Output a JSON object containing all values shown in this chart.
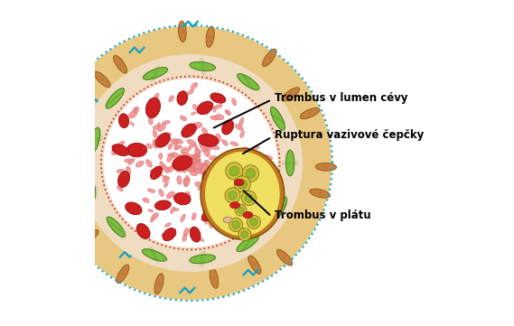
{
  "labels": {
    "lumen": "Trombus v lumen cévy",
    "ruptura": "Ruptura vazivové čepčky",
    "platu": "Trombus v plátu"
  },
  "colors": {
    "outer_bg": "#FFFFFF",
    "adventitia_fill": "#E8C880",
    "adventitia_cell": "#C88040",
    "adventitia_cell_edge": "#8B5500",
    "media_fill": "#F0DCC0",
    "smooth_muscle": "#7DC040",
    "smooth_muscle_dark": "#4A8020",
    "inner_lumen_bg": "#FFFFFF",
    "rbc_large_fill": "#CC2020",
    "rbc_large_stroke": "#991010",
    "rbc_small_fill": "#F09090",
    "rbc_small_stroke": "#CC5555",
    "dotted_ring_outer": "#20A8C8",
    "dotted_ring_inner": "#CC3333",
    "plaque_border": "#C07820",
    "plaque_fill": "#F0E060",
    "plaque_inner_green": "#80B030",
    "foam_fill": "#D8C040",
    "foam_edge": "#808020",
    "foam_inner": "#90B828",
    "endothelial_teal": "#10A0C0",
    "cell_nucleus": "#C07830"
  }
}
